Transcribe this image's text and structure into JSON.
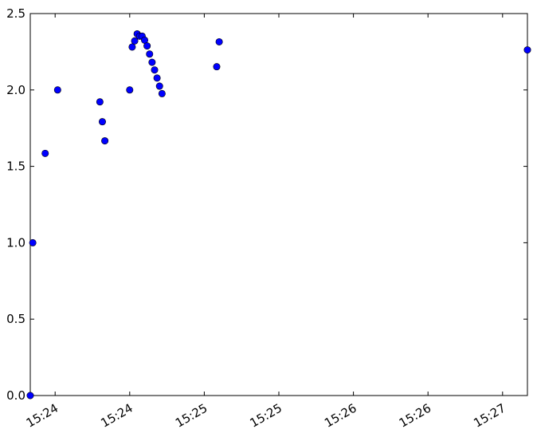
{
  "chart_data": {
    "type": "scatter",
    "title": "",
    "xlabel": "",
    "ylabel": "",
    "ylim": [
      0,
      2.5
    ],
    "yticks": [
      0.0,
      0.5,
      1.0,
      1.5,
      2.0,
      2.5
    ],
    "ytick_labels": [
      "0.0",
      "0.5",
      "1.0",
      "1.5",
      "2.0",
      "2.5"
    ],
    "xlim": [
      "15:23:50",
      "15:27:10"
    ],
    "xticks": [
      "15:24:00",
      "15:24:30",
      "15:25:00",
      "15:25:30",
      "15:26:00",
      "15:26:30",
      "15:27:00"
    ],
    "xtick_labels": [
      "15:24",
      "15:24",
      "15:25",
      "15:25",
      "15:26",
      "15:26",
      "15:27"
    ],
    "grid": false,
    "marker_color": "#0000ff",
    "series": [
      {
        "x": [
          "15:23:50",
          "15:23:51",
          "15:23:56",
          "15:24:01",
          "15:24:18",
          "15:24:19",
          "15:24:20",
          "15:24:30",
          "15:24:31",
          "15:24:32",
          "15:24:33",
          "15:24:34",
          "15:24:35",
          "15:24:36",
          "15:24:37",
          "15:24:38",
          "15:24:39",
          "15:24:40",
          "15:24:41",
          "15:24:42",
          "15:24:43",
          "15:25:05",
          "15:25:06",
          "15:27:10"
        ],
        "y": [
          0.0,
          1.0,
          1.585,
          2.0,
          1.922,
          1.792,
          1.667,
          2.0,
          2.281,
          2.321,
          2.367,
          2.352,
          2.352,
          2.326,
          2.288,
          2.235,
          2.181,
          2.131,
          2.078,
          2.025,
          1.976,
          2.152,
          2.315,
          2.262
        ]
      }
    ]
  }
}
